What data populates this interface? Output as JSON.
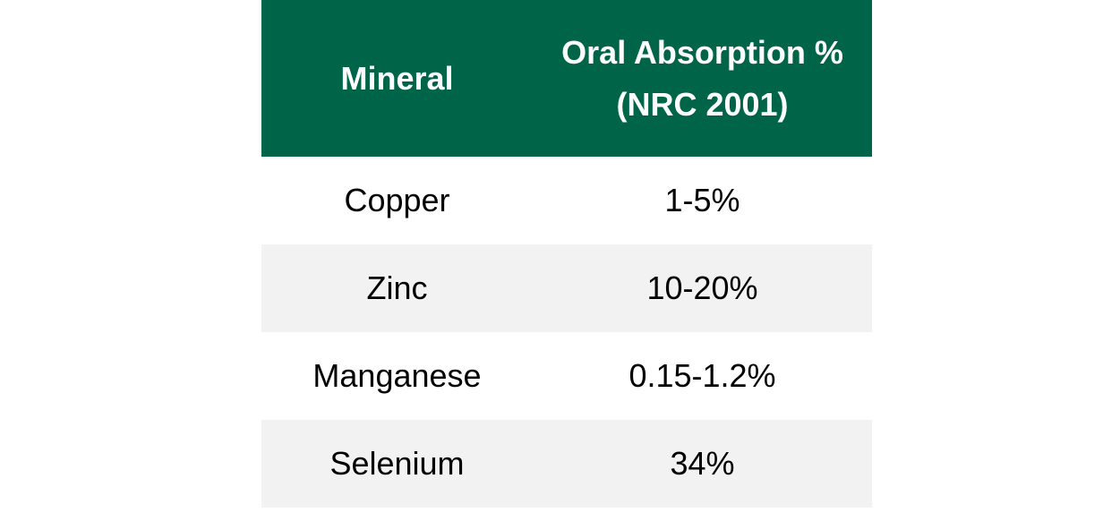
{
  "colors": {
    "header_background": "#006449",
    "header_text": "#ffffff",
    "row_odd_background": "#ffffff",
    "row_even_background": "#f2f2f2",
    "body_text": "#000000"
  },
  "table": {
    "headers": {
      "mineral": "Mineral",
      "absorption_line1": "Oral Absorption %",
      "absorption_line2": "(NRC 2001)"
    },
    "rows": [
      {
        "mineral": "Copper",
        "absorption": "1-5%"
      },
      {
        "mineral": "Zinc",
        "absorption": "10-20%"
      },
      {
        "mineral": "Manganese",
        "absorption": "0.15-1.2%"
      },
      {
        "mineral": "Selenium",
        "absorption": "34%"
      }
    ]
  }
}
